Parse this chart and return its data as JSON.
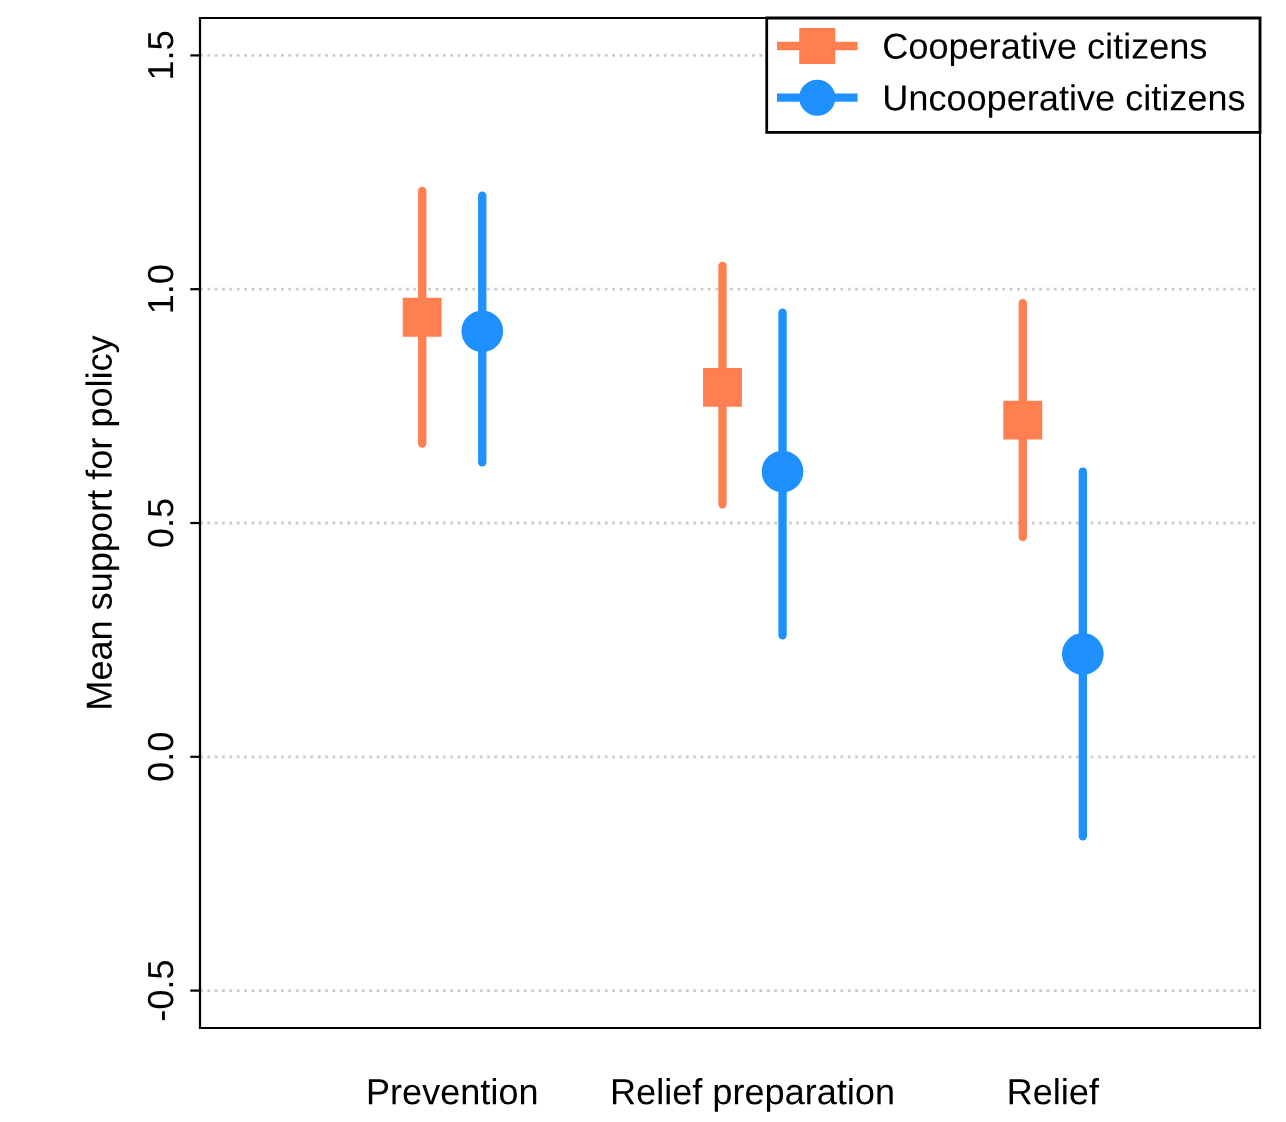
{
  "chart_data": {
    "type": "scatter",
    "ylabel": "Mean support for policy",
    "categories": [
      "Prevention",
      "Relief preparation",
      "Relief"
    ],
    "series": [
      {
        "name": "Cooperative citizens",
        "color": "#ff7f50",
        "marker": "square",
        "values": [
          0.94,
          0.79,
          0.72
        ],
        "errors": [
          [
            0.67,
            1.21
          ],
          [
            0.54,
            1.05
          ],
          [
            0.47,
            0.97
          ]
        ]
      },
      {
        "name": "Uncooperative citizens",
        "color": "#1e90ff",
        "marker": "circle",
        "values": [
          0.91,
          0.61,
          0.22
        ],
        "errors": [
          [
            0.63,
            1.2
          ],
          [
            0.26,
            0.95
          ],
          [
            -0.17,
            0.61
          ]
        ]
      }
    ],
    "ylim": [
      -0.58,
      1.58
    ],
    "yticks": [
      {
        "value": -0.5,
        "label": "-0.5"
      },
      {
        "value": 0,
        "label": "0.0"
      },
      0.5,
      {
        "value": 1,
        "label": "1.0"
      },
      1.5
    ],
    "grid": "y",
    "legend": "top right"
  }
}
